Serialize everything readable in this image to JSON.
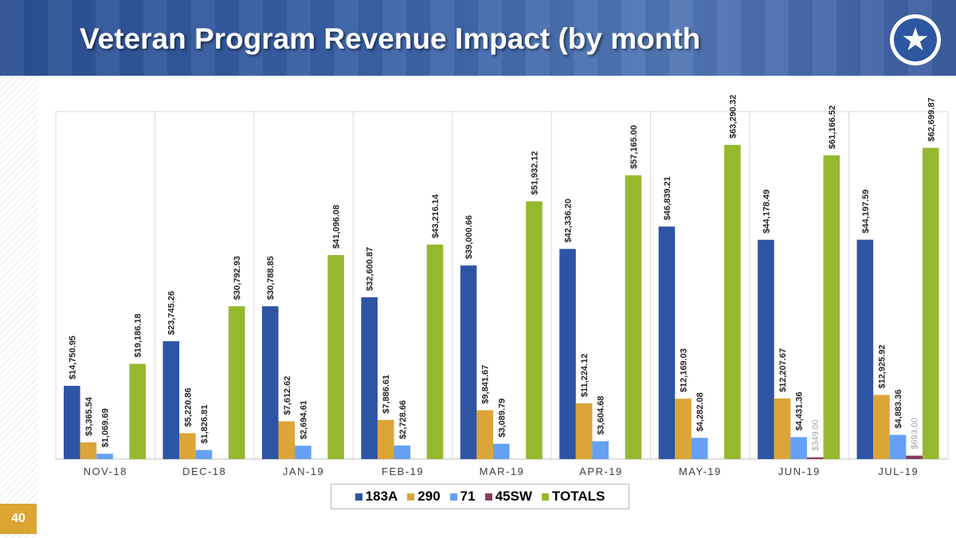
{
  "header": {
    "title": "Veteran Program Revenue Impact (by month",
    "logo": "star-logo"
  },
  "page_number": "40",
  "chart_data": {
    "type": "bar",
    "title": "",
    "xlabel": "",
    "ylabel": "",
    "ylim": [
      0,
      70000
    ],
    "grid": "vertical category separators",
    "legend_position": "bottom",
    "categories": [
      "NOV-18",
      "DEC-18",
      "JAN-19",
      "FEB-19",
      "MAR-19",
      "APR-19",
      "MAY-19",
      "JUN-19",
      "JUL-19"
    ],
    "series": [
      {
        "name": "183A",
        "color": "#2e55a3",
        "values": [
          14750.95,
          23745.26,
          30788.85,
          32600.87,
          39000.66,
          42336.2,
          46839.21,
          44178.49,
          44197.59
        ],
        "labels": [
          "$14,750.95",
          "$23,745.26",
          "$30,788.85",
          "$32,600.87",
          "$39,000.66",
          "$42,336.20",
          "$46,839.21",
          "$44,178.49",
          "$44,197.59"
        ]
      },
      {
        "name": "290",
        "color": "#dca537",
        "values": [
          3365.54,
          5220.86,
          7612.62,
          7886.61,
          9841.67,
          11224.12,
          12169.03,
          12207.67,
          12925.92
        ],
        "labels": [
          "$3,365.54",
          "$5,220.86",
          "$7,612.62",
          "$7,886.61",
          "$9,841.67",
          "$11,224.12",
          "$12,169.03",
          "$12,207.67",
          "$12,925.92"
        ]
      },
      {
        "name": "71",
        "color": "#65a0f5",
        "values": [
          1069.69,
          1826.81,
          2694.61,
          2728.66,
          3089.79,
          3604.68,
          4282.08,
          4431.36,
          4883.36
        ],
        "labels": [
          "$1,069.69",
          "$1,826.81",
          "$2,694.61",
          "$2,728.66",
          "$3,089.79",
          "$3,604.68",
          "$4,282.08",
          "$4,431.36",
          "$4,883.36"
        ]
      },
      {
        "name": "45SW",
        "color": "#8b3a62",
        "values": [
          null,
          null,
          null,
          null,
          null,
          null,
          null,
          349.0,
          693.0
        ],
        "labels": [
          null,
          null,
          null,
          null,
          null,
          null,
          null,
          "$349.00",
          "$693.00"
        ]
      },
      {
        "name": "TOTALS",
        "color": "#95b92e",
        "values": [
          19186.18,
          30792.93,
          41096.08,
          43216.14,
          51932.12,
          57165.0,
          63290.32,
          61166.52,
          62699.87
        ],
        "labels": [
          "$19,186.18",
          "$30,792.93",
          "$41,096.08",
          "$43,216.14",
          "$51,932.12",
          "$57,165.00",
          "$63,290.32",
          "$61,166.52",
          "$62,699.87"
        ]
      }
    ]
  }
}
